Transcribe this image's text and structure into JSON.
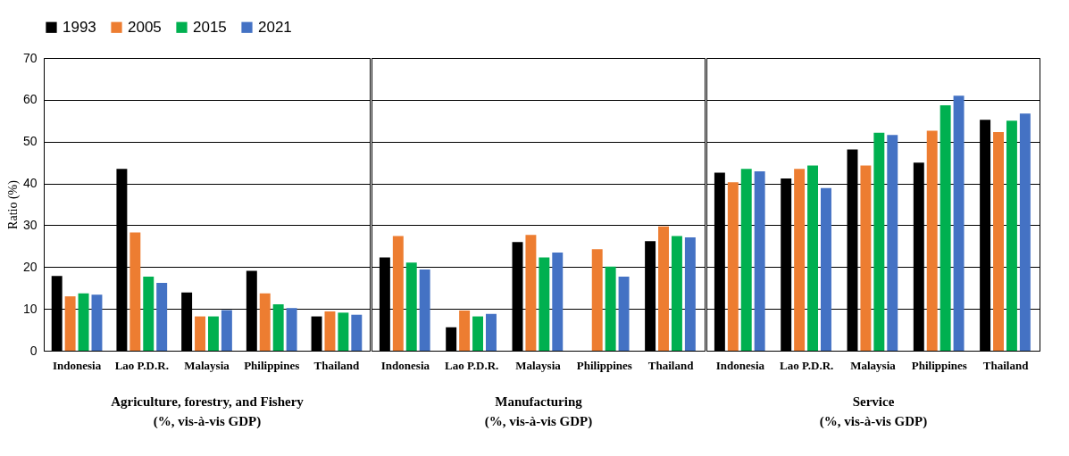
{
  "chart_data": [
    {
      "type": "bar",
      "xlabel": "Agriculture, forestry, and Fishery\n(%, vis-à-vis GDP)",
      "ylabel": "Ratio (%)",
      "categories": [
        "Indonesia",
        "Lao P.D.R.",
        "Malaysia",
        "Philippines",
        "Thailand"
      ],
      "series": [
        {
          "name": "1993",
          "color": "#000000",
          "values": [
            17.9,
            43.5,
            13.9,
            19.1,
            8.2
          ]
        },
        {
          "name": "2005",
          "color": "#ed7d31",
          "values": [
            13.0,
            28.3,
            8.2,
            13.7,
            9.4
          ]
        },
        {
          "name": "2015",
          "color": "#00b050",
          "values": [
            13.7,
            17.7,
            8.2,
            11.1,
            9.1
          ]
        },
        {
          "name": "2021",
          "color": "#4472c4",
          "values": [
            13.4,
            16.2,
            9.7,
            10.2,
            8.6
          ]
        }
      ],
      "ylim": [
        0,
        70
      ],
      "yticks": [
        0,
        10,
        20,
        30,
        40,
        50,
        60,
        70
      ],
      "grid": "y",
      "legend": "top"
    },
    {
      "type": "bar",
      "xlabel": "Manufacturing\n(%, vis-à-vis GDP)",
      "categories": [
        "Indonesia",
        "Lao P.D.R.",
        "Malaysia",
        "Philippines",
        "Thailand"
      ],
      "series": [
        {
          "name": "1993",
          "color": "#000000",
          "values": [
            22.3,
            5.6,
            26.0,
            null,
            26.2
          ]
        },
        {
          "name": "2005",
          "color": "#ed7d31",
          "values": [
            27.4,
            9.6,
            27.7,
            24.3,
            29.7
          ]
        },
        {
          "name": "2015",
          "color": "#00b050",
          "values": [
            21.1,
            8.2,
            22.3,
            20.1,
            27.4
          ]
        },
        {
          "name": "2021",
          "color": "#4472c4",
          "values": [
            19.4,
            8.8,
            23.5,
            17.7,
            27.1
          ]
        }
      ],
      "ylim": [
        0,
        70
      ],
      "yticks": [
        0,
        10,
        20,
        30,
        40,
        50,
        60,
        70
      ],
      "grid": "y",
      "tick_labels": "x"
    },
    {
      "type": "bar",
      "xlabel": "Service\n(%, vis-à-vis GDP)",
      "categories": [
        "Indonesia",
        "Lao P.D.R.",
        "Malaysia",
        "Philippines",
        "Thailand"
      ],
      "series": [
        {
          "name": "1993",
          "color": "#000000",
          "values": [
            42.6,
            41.2,
            48.1,
            45.0,
            55.2
          ]
        },
        {
          "name": "2005",
          "color": "#ed7d31",
          "values": [
            40.3,
            43.5,
            44.3,
            52.6,
            52.3
          ]
        },
        {
          "name": "2015",
          "color": "#00b050",
          "values": [
            43.5,
            44.3,
            52.1,
            58.7,
            55.0
          ]
        },
        {
          "name": "2021",
          "color": "#4472c4",
          "values": [
            42.9,
            38.9,
            51.6,
            61.0,
            56.7
          ]
        }
      ],
      "ylim": [
        0,
        70
      ],
      "yticks": [
        0,
        10,
        20,
        30,
        40,
        50,
        60,
        70
      ],
      "grid": "y",
      "tick_labels": "x"
    }
  ]
}
